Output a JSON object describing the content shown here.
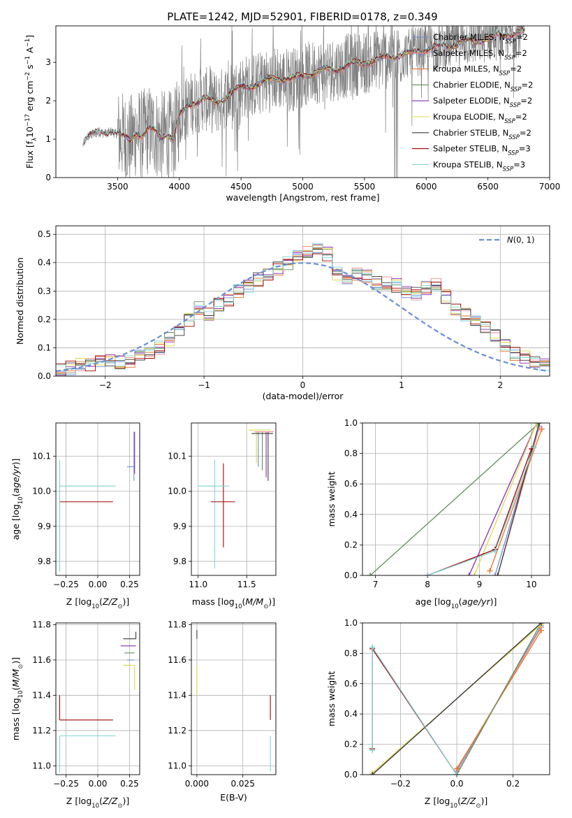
{
  "page": {
    "title": "PLATE=1242, MJD=52901, FIBERID=0178, z=0.349"
  },
  "colors": {
    "Chabrier MILES": "#6b8fd9",
    "Salpeter MILES": "#f08a8a",
    "Kroupa MILES": "#e6732a",
    "Chabrier ELODIE": "#5f8f5a",
    "Salpeter ELODIE": "#8b2cb0",
    "Kroupa ELODIE": "#d9d94a",
    "Chabrier STELIB": "#3a3a3a",
    "Salpeter STELIB": "#a40000",
    "Kroupa STELIB": "#7fd4d4",
    "data": "#808080",
    "gaussian": "#6a8ed6"
  },
  "chart_data": [
    {
      "id": "spectrum",
      "type": "line",
      "title": "PLATE=1242, MJD=52901, FIBERID=0178, z=0.349",
      "xlabel": "wavelength [Angstrom, rest frame]",
      "ylabel": "Flux [f_λ 10^-17 erg cm^-2 s^-1 A^-1]",
      "xlim": [
        3000,
        7000
      ],
      "ylim": [
        0,
        3.95
      ],
      "xticks": [
        3500,
        4000,
        4500,
        5000,
        5500,
        6000,
        6500,
        7000
      ],
      "yticks": [
        0,
        1,
        2,
        3
      ],
      "legend_position": "upper-right",
      "legend": [
        {
          "label": "Chabrier MILES, N_SSP=2",
          "name": "Chabrier MILES",
          "n": "2"
        },
        {
          "label": "Salpeter MILES, N_SSP=2",
          "name": "Salpeter MILES",
          "n": "2"
        },
        {
          "label": "Kroupa MILES, N_SSP=2",
          "name": "Kroupa MILES",
          "n": "2"
        },
        {
          "label": "Chabrier ELODIE, N_SSP=2",
          "name": "Chabrier ELODIE",
          "n": "2"
        },
        {
          "label": "Salpeter ELODIE, N_SSP=2",
          "name": "Salpeter ELODIE",
          "n": "2"
        },
        {
          "label": "Kroupa ELODIE, N_SSP=2",
          "name": "Kroupa ELODIE",
          "n": "2"
        },
        {
          "label": "Chabrier STELIB, N_SSP=2",
          "name": "Chabrier STELIB",
          "n": "2"
        },
        {
          "label": "Salpeter STELIB, N_SSP=3",
          "name": "Salpeter STELIB",
          "n": "3"
        },
        {
          "label": "Kroupa STELIB, N_SSP=3",
          "name": "Kroupa STELIB",
          "n": "3"
        }
      ],
      "model_continuum": {
        "x": [
          3220,
          3250,
          3300,
          3350,
          3400,
          3450,
          3500,
          3550,
          3600,
          3650,
          3700,
          3750,
          3800,
          3850,
          3900,
          3950,
          4000,
          4100,
          4200,
          4300,
          4400,
          4500,
          4600,
          4700,
          4800,
          4900,
          5000,
          5100,
          5200,
          5300,
          5400,
          5500,
          5600,
          5700,
          5800,
          5900,
          6000,
          6100,
          6200,
          6300,
          6400,
          6500,
          6600,
          6700,
          6800
        ],
        "y": [
          0.85,
          1.05,
          1.12,
          1.18,
          1.15,
          1.2,
          1.12,
          1.05,
          0.95,
          1.2,
          1.1,
          1.25,
          1.2,
          1.05,
          1.15,
          1.0,
          1.6,
          1.95,
          2.05,
          1.95,
          2.15,
          2.35,
          2.4,
          2.5,
          2.6,
          2.55,
          2.65,
          2.75,
          2.8,
          2.85,
          2.95,
          3.0,
          3.05,
          3.15,
          3.2,
          3.25,
          3.35,
          3.4,
          3.45,
          3.55,
          3.55,
          3.65,
          3.7,
          3.75,
          3.8
        ]
      },
      "data_x_range": [
        3220,
        6800
      ]
    },
    {
      "id": "residuals",
      "type": "step-histogram",
      "xlabel": "(data-model)/error",
      "ylabel": "Normed distribution",
      "xlim": [
        -2.5,
        2.5
      ],
      "ylim": [
        0,
        0.53
      ],
      "xticks": [
        -2,
        -1,
        0,
        1,
        2
      ],
      "yticks": [
        0.0,
        0.1,
        0.2,
        0.3,
        0.4,
        0.5
      ],
      "legend_position": "upper-right",
      "gaussian_label": "N(0,1)",
      "bin_width": 0.1,
      "bins_start": -2.5,
      "base_hist": [
        0.02,
        0.03,
        0.04,
        0.04,
        0.05,
        0.06,
        0.05,
        0.05,
        0.07,
        0.08,
        0.1,
        0.13,
        0.16,
        0.2,
        0.24,
        0.22,
        0.25,
        0.27,
        0.3,
        0.32,
        0.34,
        0.36,
        0.38,
        0.4,
        0.43,
        0.44,
        0.45,
        0.43,
        0.36,
        0.34,
        0.36,
        0.35,
        0.33,
        0.33,
        0.32,
        0.3,
        0.29,
        0.31,
        0.32,
        0.28,
        0.23,
        0.22,
        0.19,
        0.17,
        0.14,
        0.11,
        0.08,
        0.07,
        0.05,
        0.04
      ]
    },
    {
      "id": "age-vs-Z",
      "type": "errorbar",
      "xlabel": "Z [log10(Z/Z_sun)]",
      "ylabel": "age [log10(age/yr)]",
      "xlim": [
        -0.33,
        0.33
      ],
      "ylim": [
        9.76,
        10.195
      ],
      "xticks": [
        -0.25,
        0.0,
        0.25
      ],
      "yticks": [
        9.8,
        9.9,
        10.0,
        10.1
      ],
      "points": [
        {
          "model": "Chabrier MILES",
          "x": 0.29,
          "xerr": [
            0.06,
            0.0
          ],
          "y": 10.07,
          "yerr": [
            0.0,
            0.0
          ]
        },
        {
          "model": "Salpeter MILES",
          "x": 0.29,
          "xerr": [
            0.0,
            0.0
          ],
          "y": 10.17,
          "yerr": [
            0.0,
            0.0
          ]
        },
        {
          "model": "Kroupa MILES",
          "x": 0.29,
          "xerr": [
            0.0,
            0.0
          ],
          "y": 10.17,
          "yerr": [
            0.0,
            0.0
          ]
        },
        {
          "model": "Chabrier ELODIE",
          "x": 0.29,
          "xerr": [
            0.0,
            0.0
          ],
          "y": 10.16,
          "yerr": [
            0.0,
            0.0
          ]
        },
        {
          "model": "Salpeter ELODIE",
          "x": 0.3,
          "xerr": [
            0.0,
            0.0
          ],
          "y": 10.17,
          "yerr": [
            0.0,
            0.0
          ]
        },
        {
          "model": "Kroupa ELODIE",
          "x": 0.3,
          "xerr": [
            0.0,
            0.0
          ],
          "y": 10.17,
          "yerr": [
            0.0,
            0.0
          ]
        },
        {
          "model": "Chabrier STELIB",
          "x": 0.3,
          "xerr": [
            0.0,
            0.0
          ],
          "y": 10.17,
          "yerr": [
            0.0,
            0.0
          ]
        },
        {
          "model": "Salpeter STELIB",
          "x": -0.3,
          "xerr": [
            0.0,
            0.42
          ],
          "y": 9.97,
          "yerr": [
            0.0,
            0.0
          ]
        },
        {
          "model": "Kroupa STELIB",
          "x": -0.3,
          "xerr": [
            0.0,
            0.44
          ],
          "y": 10.015,
          "yerr": [
            0.24,
            0.07
          ]
        }
      ]
    },
    {
      "id": "age-vs-mass",
      "type": "errorbar",
      "xlabel": "mass [log10(M/M_sun)]",
      "ylabel": "",
      "xlim": [
        10.93,
        11.8
      ],
      "ylim": [
        9.76,
        10.195
      ],
      "xticks": [
        11.0,
        11.5
      ],
      "yticks": [
        9.8,
        9.9,
        10.0,
        10.1
      ],
      "points": [
        {
          "model": "Chabrier MILES",
          "x": 11.62,
          "xerr": [
            0.0,
            0.0
          ],
          "y": 10.17,
          "yerr": [
            0.1,
            0.0
          ]
        },
        {
          "model": "Salpeter MILES",
          "x": 11.72,
          "xerr": [
            0.0,
            0.0
          ],
          "y": 10.17,
          "yerr": [
            0.0,
            0.0
          ]
        },
        {
          "model": "Kroupa MILES",
          "x": 11.58,
          "xerr": [
            0.0,
            0.0
          ],
          "y": 10.17,
          "yerr": [
            0.0,
            0.0
          ]
        },
        {
          "model": "Chabrier ELODIE",
          "x": 11.66,
          "xerr": [
            0.0,
            0.0
          ],
          "y": 10.16,
          "yerr": [
            0.0,
            0.0
          ]
        },
        {
          "model": "Salpeter ELODIE",
          "x": 11.7,
          "xerr": [
            0.0,
            0.0
          ],
          "y": 10.17,
          "yerr": [
            0.0,
            0.0
          ]
        },
        {
          "model": "Kroupa ELODIE",
          "x": 11.6,
          "xerr": [
            0.0,
            0.0
          ],
          "y": 10.17,
          "yerr": [
            0.0,
            0.0
          ]
        },
        {
          "model": "Chabrier STELIB",
          "x": 11.67,
          "xerr": [
            0.0,
            0.0
          ],
          "y": 10.17,
          "yerr": [
            0.0,
            0.0
          ]
        },
        {
          "model": "Salpeter STELIB",
          "x": 11.26,
          "xerr": [
            0.0,
            0.0
          ],
          "y": 9.97,
          "yerr": [
            0.0,
            0.0
          ]
        },
        {
          "model": "Kroupa STELIB",
          "x": 11.17,
          "xerr": [
            0.0,
            0.0
          ],
          "y": 10.015,
          "yerr": [
            0.0,
            0.0
          ]
        }
      ]
    },
    {
      "id": "weight-vs-age",
      "type": "line",
      "xlabel": "age [log10(age/yr)]",
      "ylabel": "mass weight",
      "xlim": [
        6.75,
        10.35
      ],
      "ylim": [
        0,
        1
      ],
      "xticks": [
        7,
        8,
        9,
        10
      ],
      "yticks": [
        0.0,
        0.2,
        0.4,
        0.6,
        0.8,
        1.0
      ],
      "lines": [
        {
          "model": "Chabrier MILES",
          "x": [
            9.3,
            10.15
          ],
          "y": [
            0.0,
            0.98
          ]
        },
        {
          "model": "Salpeter MILES",
          "x": [
            9.35,
            10.15
          ],
          "y": [
            0.0,
            0.97
          ]
        },
        {
          "model": "Kroupa MILES",
          "x": [
            9.2,
            10.2
          ],
          "y": [
            0.03,
            0.96
          ]
        },
        {
          "model": "Chabrier ELODIE",
          "x": [
            6.9,
            10.15
          ],
          "y": [
            0.0,
            1.0
          ]
        },
        {
          "model": "Salpeter ELODIE",
          "x": [
            8.8,
            10.1
          ],
          "y": [
            0.0,
            1.0
          ]
        },
        {
          "model": "Kroupa ELODIE",
          "x": [
            8.9,
            10.1
          ],
          "y": [
            0.0,
            1.0
          ]
        },
        {
          "model": "Chabrier STELIB",
          "x": [
            9.35,
            10.15
          ],
          "y": [
            0.0,
            1.0
          ]
        },
        {
          "model": "Salpeter STELIB",
          "x": [
            8.0,
            9.3,
            10.0
          ],
          "y": [
            0.0,
            0.17,
            0.83
          ]
        },
        {
          "model": "Kroupa STELIB",
          "x": [
            8.0,
            9.3,
            10.05
          ],
          "y": [
            0.0,
            0.16,
            0.84
          ]
        }
      ]
    },
    {
      "id": "mass-vs-Z",
      "type": "errorbar",
      "xlabel": "Z [log10(Z/Z_sun)]",
      "ylabel": "mass [log10(M/M_sun)]",
      "xlim": [
        -0.33,
        0.33
      ],
      "ylim": [
        10.95,
        11.81
      ],
      "xticks": [
        -0.25,
        0.0,
        0.25
      ],
      "yticks": [
        11.0,
        11.2,
        11.4,
        11.6,
        11.8
      ],
      "points": [
        {
          "model": "Chabrier MILES",
          "x": 0.29,
          "xerr": [
            0.06,
            0.0
          ],
          "y": 11.6,
          "yerr": [
            0.0,
            0.0
          ]
        },
        {
          "model": "Salpeter MILES",
          "x": 0.3,
          "xerr": [
            0.0,
            0.0
          ],
          "y": 11.7,
          "yerr": [
            0.0,
            0.0
          ]
        },
        {
          "model": "Kroupa MILES",
          "x": 0.3,
          "xerr": [
            0.0,
            0.0
          ],
          "y": 11.57,
          "yerr": [
            0.0,
            0.0
          ]
        },
        {
          "model": "Chabrier ELODIE",
          "x": 0.29,
          "xerr": [
            0.08,
            0.0
          ],
          "y": 11.64,
          "yerr": [
            0.0,
            0.0
          ]
        },
        {
          "model": "Salpeter ELODIE",
          "x": 0.3,
          "xerr": [
            0.12,
            0.0
          ],
          "y": 11.68,
          "yerr": [
            0.0,
            0.0
          ]
        },
        {
          "model": "Kroupa ELODIE",
          "x": 0.29,
          "xerr": [
            0.09,
            0.0
          ],
          "y": 11.57,
          "yerr": [
            0.14,
            0.0
          ]
        },
        {
          "model": "Chabrier STELIB",
          "x": 0.3,
          "xerr": [
            0.1,
            0.0
          ],
          "y": 11.72,
          "yerr": [
            0.0,
            0.04
          ]
        },
        {
          "model": "Salpeter STELIB",
          "x": -0.3,
          "xerr": [
            0.0,
            0.42
          ],
          "y": 11.26,
          "yerr": [
            0.0,
            0.14
          ]
        },
        {
          "model": "Kroupa STELIB",
          "x": -0.3,
          "xerr": [
            0.0,
            0.44
          ],
          "y": 11.17,
          "yerr": [
            0.21,
            0.0
          ]
        }
      ]
    },
    {
      "id": "mass-vs-EBV",
      "type": "errorbar",
      "xlabel": "E(B-V)",
      "ylabel": "",
      "xlim": [
        -0.003,
        0.043
      ],
      "ylim": [
        10.95,
        11.81
      ],
      "xticks": [
        0.0,
        0.025
      ],
      "yticks": [
        11.0,
        11.2,
        11.4,
        11.6,
        11.8
      ],
      "points": [
        {
          "model": "Chabrier MILES",
          "x": 0.0,
          "xerr": [
            0.0,
            0.0
          ],
          "y": 11.6,
          "yerr": [
            0.0,
            0.0
          ]
        },
        {
          "model": "Salpeter MILES",
          "x": 0.0,
          "xerr": [
            0.0,
            0.0
          ],
          "y": 11.7,
          "yerr": [
            0.0,
            0.0
          ]
        },
        {
          "model": "Kroupa MILES",
          "x": 0.0,
          "xerr": [
            0.0,
            0.0
          ],
          "y": 11.57,
          "yerr": [
            0.0,
            0.0
          ]
        },
        {
          "model": "Chabrier ELODIE",
          "x": 0.0,
          "xerr": [
            0.0,
            0.0
          ],
          "y": 11.64,
          "yerr": [
            0.0,
            0.0
          ]
        },
        {
          "model": "Salpeter ELODIE",
          "x": 0.0,
          "xerr": [
            0.0,
            0.0
          ],
          "y": 11.68,
          "yerr": [
            0.0,
            0.0
          ]
        },
        {
          "model": "Kroupa ELODIE",
          "x": 0.0,
          "xerr": [
            0.0,
            0.0
          ],
          "y": 11.57,
          "yerr": [
            0.17,
            0.0
          ]
        },
        {
          "model": "Chabrier STELIB",
          "x": 0.0,
          "xerr": [
            0.0,
            0.0
          ],
          "y": 11.72,
          "yerr": [
            0.0,
            0.05
          ]
        },
        {
          "model": "Salpeter STELIB",
          "x": 0.04,
          "xerr": [
            0.0,
            0.0
          ],
          "y": 11.26,
          "yerr": [
            0.0,
            0.14
          ]
        },
        {
          "model": "Kroupa STELIB",
          "x": 0.04,
          "xerr": [
            0.0,
            0.0
          ],
          "y": 11.17,
          "yerr": [
            0.2,
            0.0
          ]
        }
      ]
    },
    {
      "id": "weight-vs-Z",
      "type": "line",
      "xlabel": "Z [log10(Z/Z_sun)]",
      "ylabel": "mass weight",
      "xlim": [
        -0.335,
        0.33
      ],
      "ylim": [
        0,
        1
      ],
      "xticks": [
        -0.2,
        0.0,
        0.2
      ],
      "yticks": [
        0.0,
        0.2,
        0.4,
        0.6,
        0.8,
        1.0
      ],
      "lines": [
        {
          "model": "Chabrier MILES",
          "x": [
            0.0,
            0.3
          ],
          "y": [
            0.02,
            0.98
          ]
        },
        {
          "model": "Salpeter MILES",
          "x": [
            0.0,
            0.3
          ],
          "y": [
            0.03,
            0.97
          ]
        },
        {
          "model": "Kroupa MILES",
          "x": [
            0.0,
            0.3
          ],
          "y": [
            0.04,
            0.95
          ]
        },
        {
          "model": "Chabrier ELODIE",
          "x": [
            0.0,
            0.3
          ],
          "y": [
            0.0,
            1.0
          ]
        },
        {
          "model": "Salpeter ELODIE",
          "x": [
            -0.3,
            0.3
          ],
          "y": [
            0.0,
            1.0
          ]
        },
        {
          "model": "Kroupa ELODIE",
          "x": [
            -0.3,
            0.3
          ],
          "y": [
            0.01,
            0.99
          ]
        },
        {
          "model": "Chabrier STELIB",
          "x": [
            -0.3,
            0.3
          ],
          "y": [
            0.0,
            1.0
          ]
        },
        {
          "model": "Salpeter STELIB",
          "x": [
            -0.3,
            -0.3,
            0.0
          ],
          "y": [
            0.17,
            0.83,
            0.0
          ]
        },
        {
          "model": "Kroupa STELIB",
          "x": [
            -0.3,
            -0.3,
            0.0
          ],
          "y": [
            0.16,
            0.84,
            0.0
          ]
        }
      ]
    }
  ]
}
